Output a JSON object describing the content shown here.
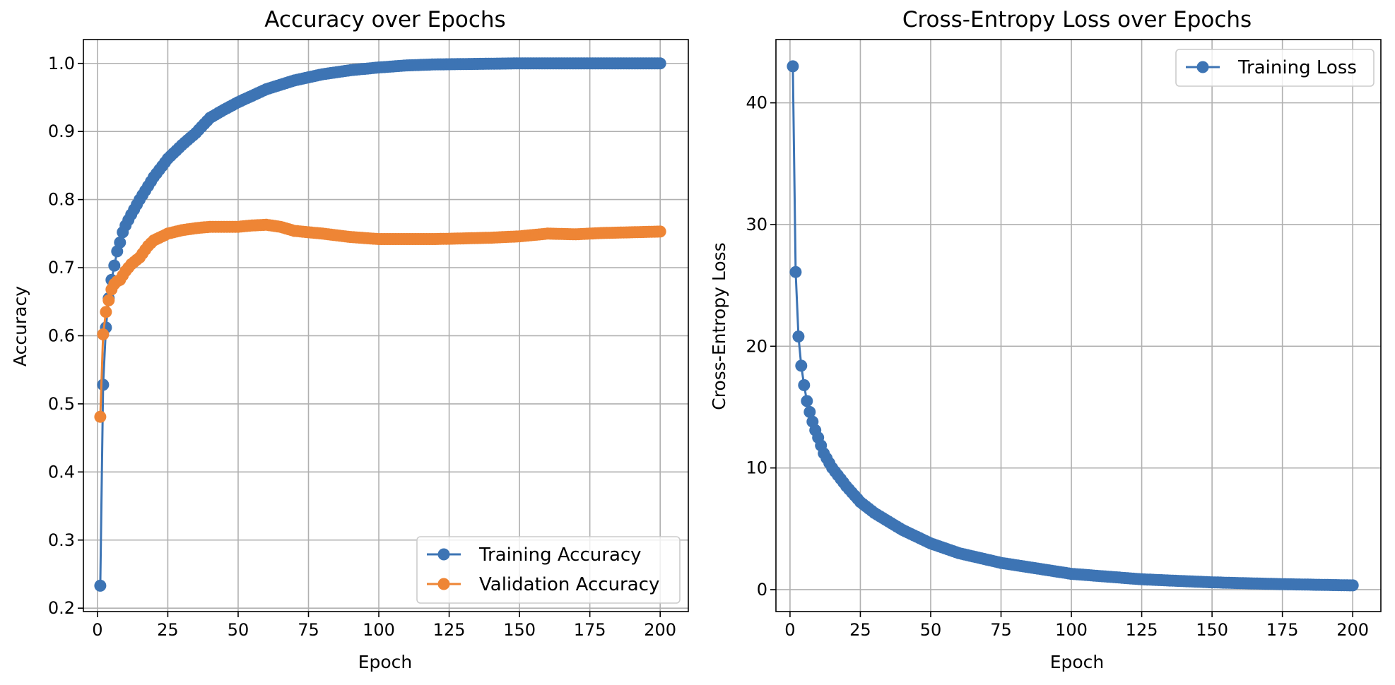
{
  "chart_data": [
    {
      "type": "line",
      "title": "Accuracy over Epochs",
      "xlabel": "Epoch",
      "ylabel": "Accuracy",
      "xlim": [
        -5,
        210
      ],
      "ylim": [
        0.195,
        1.035
      ],
      "xticks": [
        0,
        25,
        50,
        75,
        100,
        125,
        150,
        175,
        200
      ],
      "yticks": [
        0.2,
        0.3,
        0.4,
        0.5,
        0.6,
        0.7,
        0.8,
        0.9,
        1.0
      ],
      "ytick_labels": [
        "0.2",
        "0.3",
        "0.4",
        "0.5",
        "0.6",
        "0.7",
        "0.8",
        "0.9",
        "1.0"
      ],
      "grid": true,
      "legend_position": "lower-right",
      "markers": "circle",
      "epochs": [
        1,
        200
      ],
      "series": [
        {
          "name": "Training Accuracy",
          "color": "#3d74b4",
          "keypoints": [
            [
              1,
              0.233
            ],
            [
              2,
              0.528
            ],
            [
              3,
              0.612
            ],
            [
              4,
              0.655
            ],
            [
              5,
              0.682
            ],
            [
              6,
              0.703
            ],
            [
              7,
              0.724
            ],
            [
              8,
              0.737
            ],
            [
              9,
              0.752
            ],
            [
              10,
              0.762
            ],
            [
              12,
              0.778
            ],
            [
              15,
              0.8
            ],
            [
              20,
              0.833
            ],
            [
              25,
              0.86
            ],
            [
              30,
              0.88
            ],
            [
              35,
              0.898
            ],
            [
              40,
              0.92
            ],
            [
              45,
              0.932
            ],
            [
              50,
              0.943
            ],
            [
              60,
              0.962
            ],
            [
              70,
              0.975
            ],
            [
              80,
              0.984
            ],
            [
              90,
              0.99
            ],
            [
              100,
              0.994
            ],
            [
              110,
              0.997
            ],
            [
              120,
              0.9985
            ],
            [
              130,
              0.999
            ],
            [
              150,
              1.0
            ],
            [
              200,
              1.0
            ]
          ]
        },
        {
          "name": "Validation Accuracy",
          "color": "#ee8535",
          "keypoints": [
            [
              1,
              0.481
            ],
            [
              2,
              0.602
            ],
            [
              3,
              0.635
            ],
            [
              4,
              0.652
            ],
            [
              5,
              0.668
            ],
            [
              6,
              0.676
            ],
            [
              7,
              0.68
            ],
            [
              8,
              0.682
            ],
            [
              10,
              0.695
            ],
            [
              12,
              0.705
            ],
            [
              15,
              0.715
            ],
            [
              18,
              0.732
            ],
            [
              20,
              0.74
            ],
            [
              25,
              0.75
            ],
            [
              30,
              0.755
            ],
            [
              35,
              0.758
            ],
            [
              40,
              0.76
            ],
            [
              45,
              0.76
            ],
            [
              50,
              0.76
            ],
            [
              55,
              0.762
            ],
            [
              60,
              0.763
            ],
            [
              65,
              0.76
            ],
            [
              70,
              0.754
            ],
            [
              75,
              0.752
            ],
            [
              80,
              0.75
            ],
            [
              90,
              0.745
            ],
            [
              100,
              0.742
            ],
            [
              110,
              0.742
            ],
            [
              120,
              0.742
            ],
            [
              130,
              0.743
            ],
            [
              140,
              0.744
            ],
            [
              150,
              0.746
            ],
            [
              160,
              0.75
            ],
            [
              170,
              0.749
            ],
            [
              180,
              0.751
            ],
            [
              190,
              0.752
            ],
            [
              200,
              0.753
            ]
          ]
        }
      ]
    },
    {
      "type": "line",
      "title": "Cross-Entropy Loss over Epochs",
      "xlabel": "Epoch",
      "ylabel": "Cross-Entropy Loss",
      "xlim": [
        -5,
        210
      ],
      "ylim": [
        -1.8,
        45.2
      ],
      "xticks": [
        0,
        25,
        50,
        75,
        100,
        125,
        150,
        175,
        200
      ],
      "yticks": [
        0,
        10,
        20,
        30,
        40
      ],
      "ytick_labels": [
        "0",
        "10",
        "20",
        "30",
        "40"
      ],
      "grid": true,
      "legend_position": "upper-right",
      "markers": "circle",
      "epochs": [
        1,
        200
      ],
      "series": [
        {
          "name": "Training Loss",
          "color": "#3d74b4",
          "keypoints": [
            [
              1,
              43.0
            ],
            [
              2,
              26.1
            ],
            [
              3,
              20.8
            ],
            [
              4,
              18.4
            ],
            [
              5,
              16.8
            ],
            [
              6,
              15.5
            ],
            [
              7,
              14.6
            ],
            [
              8,
              13.8
            ],
            [
              9,
              13.1
            ],
            [
              10,
              12.5
            ],
            [
              12,
              11.2
            ],
            [
              15,
              10.0
            ],
            [
              20,
              8.5
            ],
            [
              25,
              7.2
            ],
            [
              30,
              6.3
            ],
            [
              40,
              4.9
            ],
            [
              50,
              3.8
            ],
            [
              60,
              3.0
            ],
            [
              75,
              2.2
            ],
            [
              100,
              1.3
            ],
            [
              125,
              0.85
            ],
            [
              150,
              0.6
            ],
            [
              175,
              0.45
            ],
            [
              200,
              0.35
            ]
          ]
        }
      ]
    }
  ]
}
